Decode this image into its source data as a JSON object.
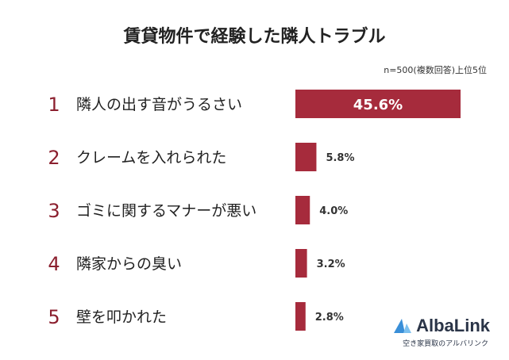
{
  "chart_data": {
    "type": "bar",
    "orientation": "horizontal",
    "title": "賃貸物件で経験した隣人トラブル",
    "note": "n=500(複数回答)上位5位",
    "ranks": [
      "1",
      "2",
      "3",
      "4",
      "5"
    ],
    "categories": [
      "隣人の出す音がうるさい",
      "クレームを入れられた",
      "ゴミに関するマナーが悪い",
      "隣家からの臭い",
      "壁を叩かれた"
    ],
    "values": [
      45.6,
      5.8,
      4.0,
      3.2,
      2.8
    ],
    "value_labels": [
      "45.6%",
      "5.8%",
      "4.0%",
      "3.2%",
      "2.8%"
    ],
    "xlim": [
      0,
      45.6
    ],
    "bar_color": "#a62b3c",
    "rank_color": "#8b1f2e",
    "grid": false,
    "legend": "none"
  },
  "logo": {
    "name": "AlbaLink",
    "tagline": "空き家買取のアルバリンク",
    "icon": "sail-logo-icon"
  }
}
